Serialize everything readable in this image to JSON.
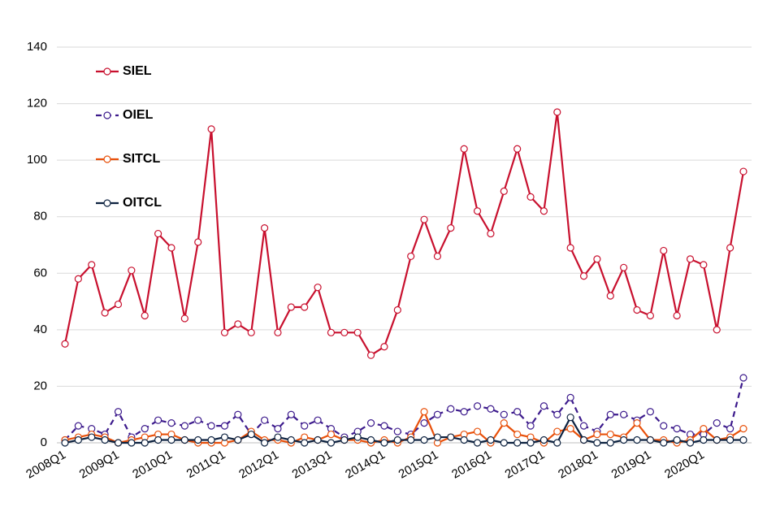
{
  "chart_data": {
    "type": "line",
    "categories": [
      "2008Q1",
      null,
      null,
      null,
      "2009Q1",
      null,
      null,
      null,
      "2010Q1",
      null,
      null,
      null,
      "2011Q1",
      null,
      null,
      null,
      "2012Q1",
      null,
      null,
      null,
      "2013Q1",
      null,
      null,
      null,
      "2014Q1",
      null,
      null,
      null,
      "2015Q1",
      null,
      null,
      null,
      "2016Q1",
      null,
      null,
      null,
      "2017Q1",
      null,
      null,
      null,
      "2018Q1",
      null,
      null,
      null,
      "2019Q1",
      null,
      null,
      null,
      "2020Q1",
      null,
      null,
      null
    ],
    "series": [
      {
        "name": "SIEL",
        "color": "#c8102e",
        "line_style": "solid",
        "values": [
          35,
          58,
          63,
          46,
          49,
          61,
          45,
          74,
          69,
          44,
          71,
          111,
          39,
          42,
          39,
          76,
          39,
          48,
          48,
          55,
          39,
          39,
          39,
          31,
          34,
          47,
          66,
          79,
          66,
          76,
          104,
          82,
          74,
          89,
          104,
          87,
          82,
          117,
          69,
          59,
          65,
          52,
          62,
          47,
          45,
          68,
          45,
          65,
          63,
          40,
          69,
          96
        ]
      },
      {
        "name": "OIEL",
        "color": "#3c1a8c",
        "line_style": "dashed",
        "values": [
          1,
          6,
          5,
          3,
          11,
          2,
          5,
          8,
          7,
          6,
          8,
          6,
          6,
          10,
          3,
          8,
          5,
          10,
          6,
          8,
          5,
          2,
          4,
          7,
          6,
          4,
          3,
          7,
          10,
          12,
          11,
          13,
          12,
          10,
          11,
          6,
          13,
          10,
          16,
          6,
          4,
          10,
          10,
          8,
          11,
          6,
          5,
          3,
          3,
          7,
          5,
          23
        ]
      },
      {
        "name": "SITCL",
        "color": "#e8500a",
        "line_style": "solid",
        "values": [
          1,
          2,
          3,
          2,
          0,
          1,
          2,
          3,
          3,
          1,
          0,
          0,
          0,
          1,
          4,
          1,
          1,
          0,
          2,
          1,
          3,
          1,
          1,
          0,
          1,
          0,
          2,
          11,
          0,
          2,
          3,
          4,
          0,
          7,
          3,
          2,
          0,
          4,
          5,
          1,
          3,
          3,
          2,
          7,
          1,
          1,
          0,
          1,
          5,
          1,
          2,
          5
        ]
      },
      {
        "name": "OITCL",
        "color": "#0d2240",
        "line_style": "solid",
        "values": [
          0,
          1,
          2,
          1,
          0,
          0,
          0,
          1,
          1,
          1,
          1,
          1,
          2,
          1,
          3,
          0,
          2,
          1,
          0,
          1,
          0,
          1,
          2,
          1,
          0,
          1,
          1,
          1,
          2,
          2,
          1,
          0,
          1,
          0,
          0,
          0,
          1,
          0,
          9,
          1,
          0,
          0,
          1,
          1,
          1,
          0,
          1,
          0,
          1,
          1,
          1,
          1
        ]
      }
    ],
    "ylim": [
      0,
      140
    ],
    "yticks": [
      0,
      20,
      40,
      60,
      80,
      100,
      120,
      140
    ],
    "grid": true,
    "legend": "top-left"
  }
}
